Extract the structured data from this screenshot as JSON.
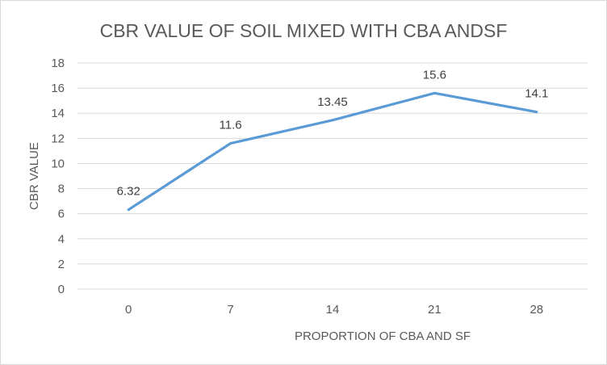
{
  "chart_data": {
    "type": "line",
    "title": "CBR VALUE OF SOIL MIXED WITH CBA ANDSF",
    "xlabel": "PROPORTION OF CBA AND SF",
    "ylabel": "CBR VALUE",
    "categories": [
      "0",
      "7",
      "14",
      "21",
      "28"
    ],
    "series": [
      {
        "name": "CBR VALUE",
        "values": [
          6.32,
          11.6,
          13.45,
          15.6,
          14.1
        ],
        "labels": [
          "6.32",
          "11.6",
          "13.45",
          "15.6",
          "14.1"
        ],
        "color": "#5b9bd5"
      }
    ],
    "ylim": [
      0,
      18
    ],
    "yticks": [
      "0",
      "2",
      "4",
      "6",
      "8",
      "10",
      "12",
      "14",
      "16",
      "18"
    ],
    "grid": true,
    "legend": "none",
    "colors": {
      "gridline": "#d9d9d9",
      "text": "#595959",
      "border": "#d9d9d9"
    }
  }
}
